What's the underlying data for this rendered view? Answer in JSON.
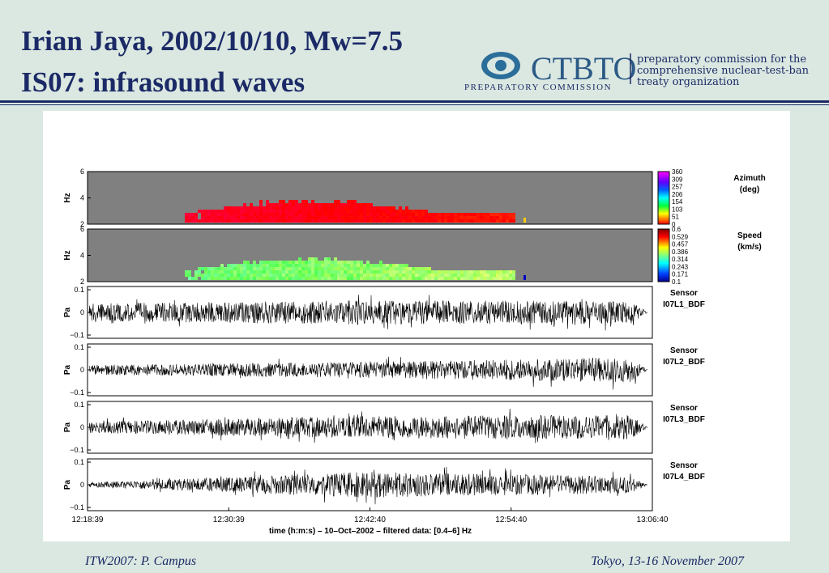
{
  "header": {
    "title_lines": [
      "Irian Jaya, 2002/10/10, Mw=7.5",
      "IS07: infrasound waves"
    ]
  },
  "logo": {
    "name": "CTBTO",
    "subtitle": "PREPARATORY COMMISSION",
    "tagline": [
      "preparatory commission for the",
      "comprehensive nuclear-test-ban",
      "treaty organization"
    ]
  },
  "figure": {
    "panels": [
      {
        "ylabel": "Hz",
        "yticks": [
          "6",
          "4",
          "2"
        ],
        "colorbar": {
          "labels": [
            "360",
            "309",
            "257",
            "206",
            "154",
            "103",
            "51",
            "0"
          ],
          "title": [
            "Azimuth",
            "(deg)"
          ]
        }
      },
      {
        "ylabel": "Hz",
        "yticks": [
          "6",
          "4",
          "2"
        ],
        "colorbar": {
          "labels": [
            "0.6",
            "0.529",
            "0.457",
            "0.386",
            "0.314",
            "0.243",
            "0.171",
            "0.1"
          ],
          "title": [
            "Speed",
            "(km/s)"
          ]
        }
      }
    ],
    "sensors": [
      {
        "ylabel": "Pa",
        "yticks": [
          "0.1",
          "0",
          "−0.1"
        ],
        "label": [
          "Sensor",
          "I07L1_BDF"
        ]
      },
      {
        "ylabel": "Pa",
        "yticks": [
          "0.1",
          "0",
          "−0.1"
        ],
        "label": [
          "Sensor",
          "I07L2_BDF"
        ]
      },
      {
        "ylabel": "Pa",
        "yticks": [
          "0.1",
          "0",
          "−0.1"
        ],
        "label": [
          "Sensor",
          "I07L3_BDF"
        ]
      },
      {
        "ylabel": "Pa",
        "yticks": [
          "0.1",
          "0",
          "−0.1"
        ],
        "label": [
          "Sensor",
          "I07L4_BDF"
        ]
      }
    ],
    "xticks": [
      "12:18:39",
      "12:30:39",
      "12:42:40",
      "12:54:40",
      "13:06:40"
    ],
    "xlabel": "time (h:m:s) – 10–Oct–2002 – filtered data: [0.4–6] Hz"
  },
  "footer": {
    "left": "ITW2007: P. Campus",
    "right": "Tokyo, 13-16 November 2007"
  }
}
